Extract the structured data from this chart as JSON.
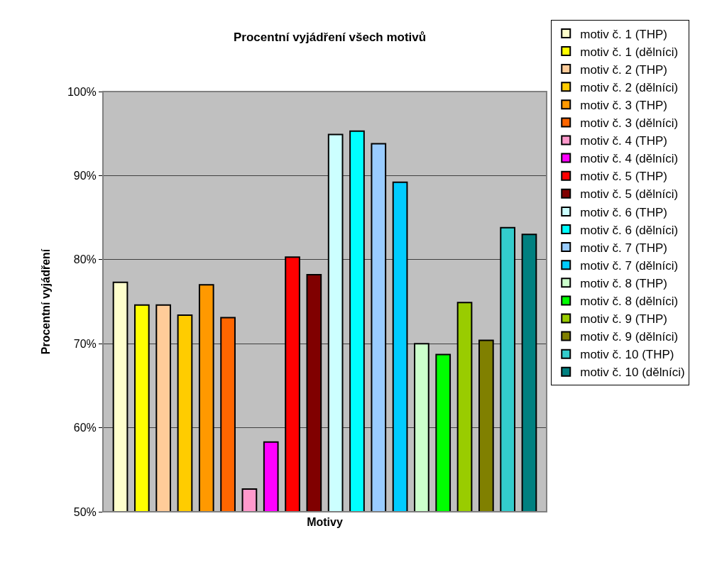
{
  "chart_data": {
    "type": "bar",
    "title": "Procentní vyjádření všech motivů",
    "xlabel": "Motivy",
    "ylabel": "Procentní vyjádření",
    "categories": [
      null
    ],
    "series": [
      {
        "name": "motiv č. 1 (THP)",
        "color": "#ffffcc",
        "values": [
          77.3
        ]
      },
      {
        "name": "motiv č. 1 (dělníci)",
        "color": "#ffff00",
        "values": [
          74.6
        ]
      },
      {
        "name": "motiv č. 2 (THP)",
        "color": "#ffcc99",
        "values": [
          74.6
        ]
      },
      {
        "name": "motiv č. 2 (dělníci)",
        "color": "#ffcc00",
        "values": [
          73.4
        ]
      },
      {
        "name": "motiv č. 3 (THP)",
        "color": "#ff9900",
        "values": [
          77.0
        ]
      },
      {
        "name": "motiv č. 3 (dělníci)",
        "color": "#ff6600",
        "values": [
          73.1
        ]
      },
      {
        "name": "motiv č. 4 (THP)",
        "color": "#ff99cc",
        "values": [
          52.7
        ]
      },
      {
        "name": "motiv č. 4 (dělníci)",
        "color": "#ff00ff",
        "values": [
          58.3
        ]
      },
      {
        "name": "motiv č. 5 (THP)",
        "color": "#ff0000",
        "values": [
          80.3
        ]
      },
      {
        "name": "motiv č. 5 (dělníci)",
        "color": "#800000",
        "values": [
          78.2
        ]
      },
      {
        "name": "motiv č. 6 (THP)",
        "color": "#ccffff",
        "values": [
          94.9
        ]
      },
      {
        "name": "motiv č. 6 (dělníci)",
        "color": "#00ffff",
        "values": [
          95.3
        ]
      },
      {
        "name": "motiv č. 7 (THP)",
        "color": "#99ccff",
        "values": [
          93.8
        ]
      },
      {
        "name": "motiv č. 7 (dělníci)",
        "color": "#00ccff",
        "values": [
          89.2
        ]
      },
      {
        "name": "motiv č. 8 (THP)",
        "color": "#ccffcc",
        "values": [
          70.0
        ]
      },
      {
        "name": "motiv č. 8 (dělníci)",
        "color": "#00ff00",
        "values": [
          68.7
        ]
      },
      {
        "name": "motiv č. 9 (THP)",
        "color": "#99cc00",
        "values": [
          74.9
        ]
      },
      {
        "name": "motiv č. 9 (dělníci)",
        "color": "#808000",
        "values": [
          70.4
        ]
      },
      {
        "name": "motiv č. 10 (THP)",
        "color": "#33cccc",
        "values": [
          83.8
        ]
      },
      {
        "name": "motiv č. 10 (dělníci)",
        "color": "#008080",
        "values": [
          83.0
        ]
      }
    ],
    "ylim": [
      50,
      100
    ],
    "yticks": [
      {
        "value": 50,
        "label": "50%"
      },
      {
        "value": 60,
        "label": "60%"
      },
      {
        "value": 70,
        "label": "70%"
      },
      {
        "value": 80,
        "label": "80%"
      },
      {
        "value": 90,
        "label": "90%"
      },
      {
        "value": 100,
        "label": "100%"
      }
    ],
    "grid": "y",
    "legend": "right"
  }
}
